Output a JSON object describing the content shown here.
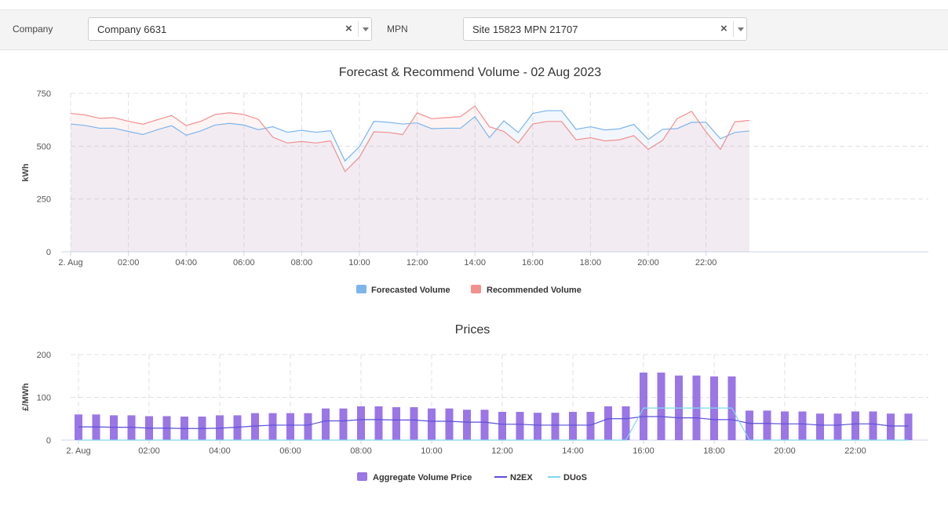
{
  "filters": {
    "company_label": "Company",
    "company_value": "Company 6631",
    "mpn_label": "MPN",
    "mpn_value": "Site 15823 MPN 21707",
    "clear_glyph": "×"
  },
  "chart_data": [
    {
      "type": "area",
      "title": "Forecast & Recommend Volume - 02 Aug 2023",
      "xlabel": "",
      "ylabel": "kWh",
      "ylim": [
        0,
        750
      ],
      "yticks": [
        0,
        250,
        500,
        750
      ],
      "xtick_labels": [
        "2. Aug",
        "02:00",
        "04:00",
        "06:00",
        "08:00",
        "10:00",
        "12:00",
        "14:00",
        "16:00",
        "18:00",
        "20:00",
        "22:00"
      ],
      "x_interval_minutes": 30,
      "grid": true,
      "legend_position": "bottom-center",
      "series": [
        {
          "name": "Forecasted Volume",
          "color": "#7cb5ec",
          "values": [
            605,
            598,
            585,
            585,
            570,
            555,
            578,
            597,
            552,
            572,
            600,
            608,
            600,
            578,
            592,
            566,
            575,
            566,
            573,
            430,
            498,
            618,
            613,
            605,
            610,
            583,
            585,
            585,
            640,
            540,
            620,
            565,
            655,
            668,
            668,
            580,
            592,
            577,
            582,
            603,
            532,
            580,
            583,
            613,
            613,
            535,
            565,
            572
          ]
        },
        {
          "name": "Recommended Volume",
          "color": "#f28f8f",
          "values": [
            655,
            648,
            632,
            635,
            618,
            604,
            625,
            645,
            598,
            617,
            650,
            658,
            650,
            627,
            543,
            515,
            522,
            515,
            525,
            380,
            448,
            568,
            565,
            555,
            658,
            630,
            635,
            640,
            690,
            592,
            570,
            515,
            605,
            617,
            617,
            530,
            540,
            525,
            530,
            550,
            485,
            528,
            630,
            665,
            568,
            485,
            615,
            622
          ]
        }
      ]
    },
    {
      "type": "bar",
      "title": "Prices",
      "xlabel": "",
      "ylabel": "£/MWh",
      "ylim": [
        0,
        200
      ],
      "yticks": [
        0,
        100,
        200
      ],
      "xtick_labels": [
        "2. Aug",
        "02:00",
        "04:00",
        "06:00",
        "08:00",
        "10:00",
        "12:00",
        "14:00",
        "16:00",
        "18:00",
        "20:00",
        "22:00"
      ],
      "x_interval_minutes": 30,
      "grid": true,
      "legend_position": "bottom-center",
      "series": [
        {
          "name": "Aggregate Volume Price",
          "kind": "bar",
          "color": "#9a76e6",
          "values": [
            60,
            60,
            58,
            58,
            56,
            56,
            55,
            55,
            58,
            58,
            63,
            63,
            63,
            63,
            74,
            74,
            79,
            79,
            77,
            77,
            74,
            74,
            71,
            71,
            66,
            66,
            64,
            64,
            66,
            66,
            79,
            79,
            158,
            158,
            151,
            151,
            149,
            149,
            69,
            69,
            67,
            67,
            62,
            62,
            67,
            67,
            62,
            62
          ]
        },
        {
          "name": "N2EX",
          "kind": "line",
          "color": "#5b4fd8",
          "values": [
            31,
            31,
            30,
            30,
            28,
            28,
            27,
            27,
            28,
            30,
            33,
            35,
            35,
            35,
            45,
            45,
            48,
            48,
            47,
            47,
            44,
            44,
            42,
            42,
            37,
            37,
            35,
            35,
            35,
            35,
            50,
            50,
            55,
            55,
            52,
            52,
            48,
            48,
            39,
            39,
            38,
            38,
            35,
            35,
            38,
            38,
            33,
            33
          ]
        },
        {
          "name": "DUoS",
          "kind": "line",
          "color": "#7fd8f0",
          "values": [
            0,
            0,
            0,
            0,
            0,
            0,
            0,
            0,
            0,
            0,
            0,
            0,
            0,
            0,
            0,
            0,
            0,
            0,
            0,
            0,
            0,
            0,
            0,
            0,
            0,
            0,
            0,
            0,
            0,
            0,
            0,
            0,
            75,
            75,
            75,
            75,
            75,
            75,
            0,
            0,
            0,
            0,
            0,
            0,
            0,
            0,
            0,
            0
          ]
        }
      ]
    }
  ]
}
